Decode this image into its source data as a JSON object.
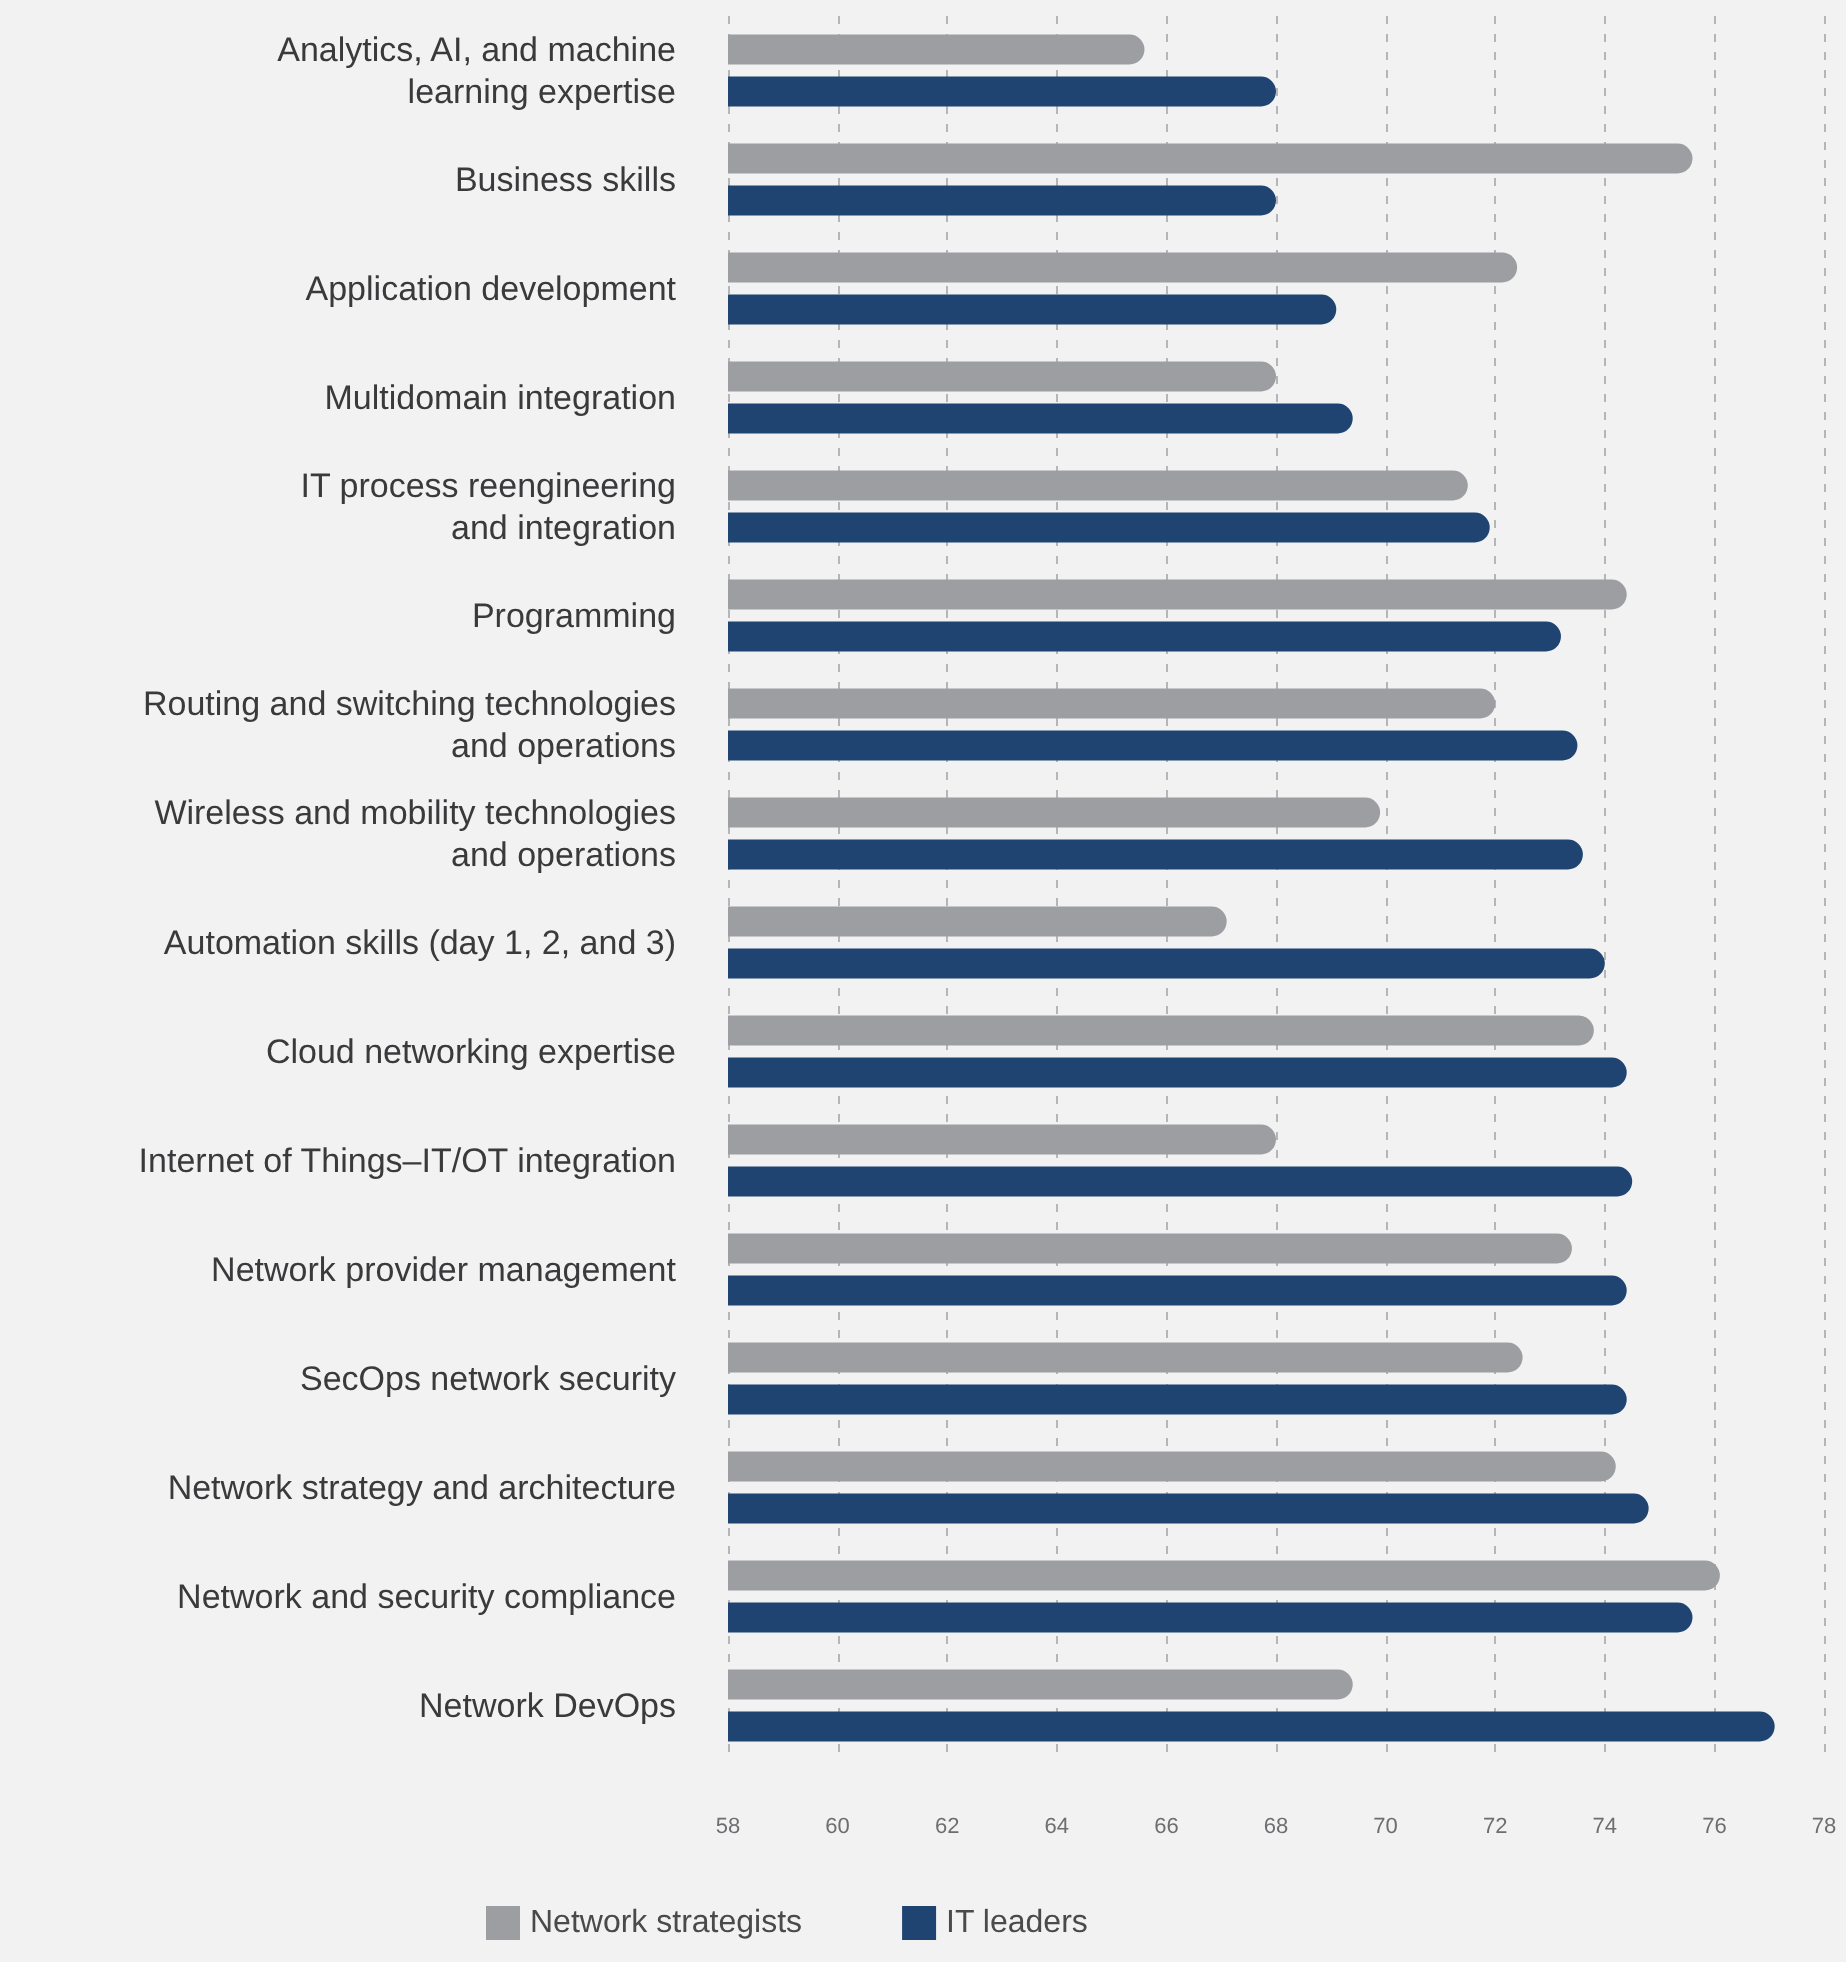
{
  "chart_data": {
    "type": "bar",
    "orientation": "horizontal",
    "categories": [
      "Analytics, AI, and machine\nlearning expertise",
      "Business skills",
      "Application development",
      "Multidomain integration",
      "IT process reengineering\nand integration",
      "Programming",
      "Routing and switching technologies\nand operations",
      "Wireless and mobility technologies\nand operations",
      "Automation skills (day 1, 2, and 3)",
      "Cloud networking expertise",
      "Internet of Things–IT/OT integration",
      "Network provider management",
      "SecOps network security",
      "Network strategy and architecture",
      "Network and security compliance",
      "Network DevOps"
    ],
    "series": [
      {
        "name": "Network strategists",
        "color": "#9d9ea2",
        "values": [
          65.6,
          75.6,
          72.4,
          68.0,
          71.5,
          74.4,
          72.0,
          69.9,
          67.1,
          73.8,
          68.0,
          73.4,
          72.5,
          74.2,
          76.1,
          69.4
        ]
      },
      {
        "name": "IT leaders",
        "color": "#1f4471",
        "values": [
          68.0,
          68.0,
          69.1,
          69.4,
          71.9,
          73.2,
          73.5,
          73.6,
          74.0,
          74.4,
          74.5,
          74.4,
          74.4,
          74.8,
          75.6,
          77.1
        ]
      }
    ],
    "xlim": [
      58,
      78
    ],
    "xticks": [
      58,
      60,
      62,
      64,
      66,
      68,
      70,
      72,
      74,
      76,
      78
    ],
    "grid": "x",
    "legend": "bottom"
  }
}
